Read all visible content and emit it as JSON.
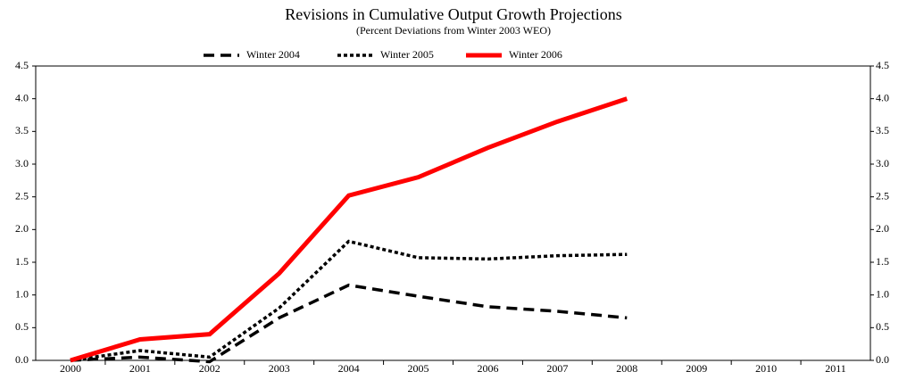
{
  "chart_data": {
    "type": "line",
    "title": "Revisions in Cumulative Output Growth Projections",
    "subtitle": "(Percent Deviations from Winter 2003 WEO)",
    "categories": [
      "2000",
      "2001",
      "2002",
      "2003",
      "2004",
      "2005",
      "2006",
      "2007",
      "2008",
      "2009",
      "2010",
      "2011"
    ],
    "series": [
      {
        "name": "Winter 2004",
        "color": "#000000",
        "style": "dashed",
        "values": [
          0,
          0.05,
          -0.02,
          0.65,
          1.15,
          0.98,
          0.82,
          0.75,
          0.65,
          null,
          null,
          null
        ]
      },
      {
        "name": "Winter 2005",
        "color": "#000000",
        "style": "dotted",
        "values": [
          0,
          0.15,
          0.05,
          0.8,
          1.82,
          1.57,
          1.55,
          1.6,
          1.62,
          null,
          null,
          null
        ]
      },
      {
        "name": "Winter 2006",
        "color": "#ff0000",
        "style": "solid",
        "values": [
          0,
          0.32,
          0.4,
          1.33,
          2.52,
          2.8,
          3.25,
          3.65,
          4.0,
          null,
          null,
          null
        ]
      }
    ],
    "ylim": [
      0,
      4.5
    ],
    "yticks": [
      {
        "value": 0,
        "label": "0.0"
      },
      {
        "value": 0.5,
        "label": "0.5"
      },
      {
        "value": 1,
        "label": "1.0"
      },
      {
        "value": 1.5,
        "label": "1.5"
      },
      {
        "value": 2,
        "label": "2.0"
      },
      {
        "value": 2.5,
        "label": "2.5"
      },
      {
        "value": 3,
        "label": "3.0"
      },
      {
        "value": 3.5,
        "label": "3.5"
      },
      {
        "value": 4,
        "label": "4.0"
      },
      {
        "value": 4.5,
        "label": "4.5"
      }
    ],
    "y2lim": [
      0,
      4.5
    ],
    "y2ticks": [
      {
        "value": 0,
        "label": "0.0"
      },
      {
        "value": 0.5,
        "label": "0.5"
      },
      {
        "value": 1,
        "label": "1.0"
      },
      {
        "value": 1.5,
        "label": "1.5"
      },
      {
        "value": 2,
        "label": "2.0"
      },
      {
        "value": 2.5,
        "label": "2.5"
      },
      {
        "value": 3,
        "label": "3.0"
      },
      {
        "value": 3.5,
        "label": "3.5"
      },
      {
        "value": 4,
        "label": "4.0"
      },
      {
        "value": 4.5,
        "label": "4.5"
      }
    ],
    "grid": false
  }
}
